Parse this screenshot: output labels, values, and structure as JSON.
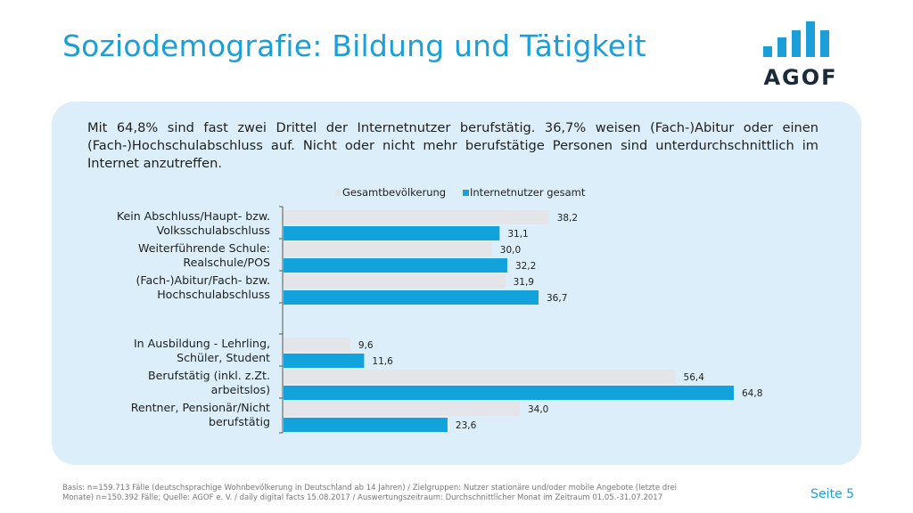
{
  "title": "Soziodemografie: Bildung und Tätigkeit",
  "logo": {
    "text": "AGOF"
  },
  "intro": "Mit 64,8% sind fast zwei Drittel der Internetnutzer berufstätig. 36,7% weisen (Fach-)Abitur oder einen (Fach-)Hochschulabschluss auf. Nicht oder nicht mehr berufstätige Personen sind unterdurchschnittlich im Internet anzutreffen.",
  "colors": {
    "accent": "#1a9fd8",
    "panel": "#dbeef9",
    "series_gesamt": "#e3e5e8",
    "series_internet": "#13a3dc"
  },
  "chart_data": {
    "type": "bar",
    "orientation": "horizontal",
    "legend_position": "top",
    "grid": false,
    "categories": [
      "Kein Abschluss/Haupt- bzw. Volksschulabschluss",
      "Weiterführende Schule: Realschule/POS",
      "(Fach-)Abitur/Fach- bzw. Hochschulabschluss",
      "In Ausbildung - Lehrling, Schüler, Student",
      "Berufstätig (inkl. z.Zt. arbeitslos)",
      "Rentner, Pensionär/Nicht berufstätig"
    ],
    "category_lines": [
      [
        "Kein Abschluss/Haupt- bzw.",
        "Volksschulabschluss"
      ],
      [
        "Weiterführende Schule:",
        "Realschule/POS"
      ],
      [
        "(Fach-)Abitur/Fach- bzw.",
        "Hochschulabschluss"
      ],
      [
        "In Ausbildung - Lehrling,",
        "Schüler, Student"
      ],
      [
        "Berufstätig (inkl. z.Zt.",
        "arbeitslos)"
      ],
      [
        "Rentner, Pensionär/Nicht",
        "berufstätig"
      ]
    ],
    "series": [
      {
        "name": "Gesamtbevölkerung",
        "values": [
          38.2,
          30.0,
          31.9,
          9.6,
          56.4,
          34.0
        ],
        "labels": [
          "38,2",
          "30,0",
          "31,9",
          "9,6",
          "56,4",
          "34,0"
        ]
      },
      {
        "name": "Internetnutzer gesamt",
        "values": [
          31.1,
          32.2,
          36.7,
          11.6,
          64.8,
          23.6
        ],
        "labels": [
          "31,1",
          "32,2",
          "36,7",
          "11,6",
          "64,8",
          "23,6"
        ]
      }
    ],
    "xlim": [
      0,
      70
    ]
  },
  "footnote": "Basis: n=159.713 Fälle (deutschsprachige Wohnbevölkerung in Deutschland ab 14 Jahren) / Zielgruppen: Nutzer stationäre und/oder mobile Angebote (letzte drei Monate) n=150.392 Fälle; Quelle: AGOF e. V. / daily digital facts 15.08.2017 / Auswertungszeitraum: Durchschnittlicher Monat im Zeitraum 01.05.-31.07.2017",
  "page_label": "Seite 5"
}
